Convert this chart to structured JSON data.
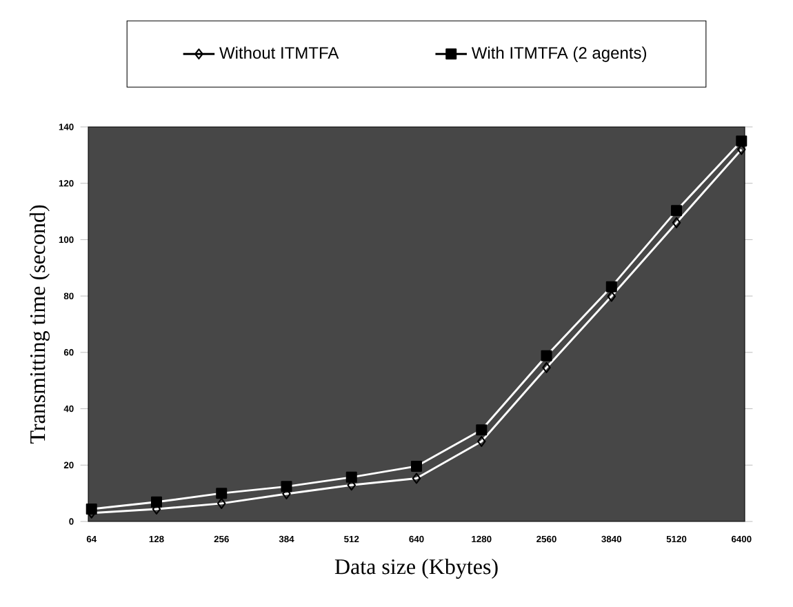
{
  "chart_data": {
    "type": "line",
    "xlabel": "Data size (Kbytes)",
    "ylabel": "Transmitting time (second)",
    "categories": [
      "64",
      "128",
      "256",
      "384",
      "512",
      "640",
      "1280",
      "2560",
      "3840",
      "5120",
      "6400"
    ],
    "series": [
      {
        "name": "Without ITMTFA",
        "color": "#000000",
        "marker": "diamond",
        "values": [
          3,
          4.4,
          6.4,
          9.8,
          12.9,
          15.3,
          28.4,
          54.6,
          79.9,
          106,
          132
        ]
      },
      {
        "name": "With ITMTFA (2 agents)",
        "color": "#000000",
        "marker": "square",
        "values": [
          4.4,
          6.9,
          10,
          12.4,
          15.7,
          19.6,
          32.5,
          58.8,
          83.3,
          110.3,
          135
        ]
      }
    ],
    "ylim": [
      0,
      140
    ],
    "yticks": [
      0,
      20,
      40,
      60,
      80,
      100,
      120,
      140
    ],
    "legend": "top",
    "grid": false
  }
}
